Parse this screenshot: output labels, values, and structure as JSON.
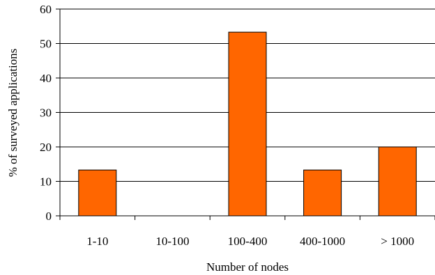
{
  "chart_data": {
    "type": "bar",
    "categories": [
      "1-10",
      "10-100",
      "100-400",
      "400-1000",
      "> 1000"
    ],
    "values": [
      13.3,
      0,
      53.3,
      13.3,
      20
    ],
    "xlabel": "Number of nodes",
    "ylabel": "% of surveyed applications",
    "ylim": [
      0,
      60
    ],
    "yticks": [
      0,
      10,
      20,
      30,
      40,
      50,
      60
    ],
    "grid": true,
    "legend": "none",
    "bar_color": "#ff6600",
    "bar_edge_color": "#000000"
  }
}
